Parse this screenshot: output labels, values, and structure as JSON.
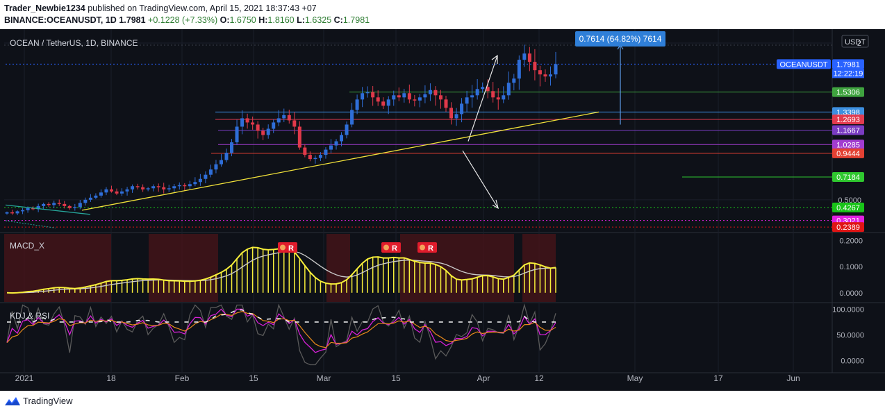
{
  "header": {
    "user": "Trader_Newbie1234",
    "published": " published on TradingView.com, April 15, 2021 18:37:43 +07",
    "symbol": "BINANCE:OCEANUSDT, 1D",
    "last": "1.7981",
    "change": "+0.1228 (+7.33%)",
    "o_label": "O:",
    "o_val": "1.6750",
    "h_label": "H:",
    "h_val": "1.8160",
    "l_label": "L:",
    "l_val": "1.6325",
    "c_label": "C:",
    "c_val": "1.7981"
  },
  "footer": {
    "brand": "TradingView"
  },
  "colors": {
    "bg": "#0e1118",
    "up": "#2f6ed8",
    "down": "#e0394a",
    "trend": "#f2e23a",
    "macd": "#f7ef3a",
    "grid": "#1b1f2a"
  },
  "chart_data": [
    {
      "type": "candlestick",
      "title": "OCEAN / TetherUS, 1D, BINANCE",
      "currency": "USDT",
      "y_ticks": [
        {
          "v": 2.0,
          "label": "2"
        },
        {
          "v": 0.5,
          "label": "0.5000"
        }
      ],
      "ylim": [
        0.2,
        2.04
      ],
      "x_ticks": [
        "2021",
        "18",
        "Feb",
        "15",
        "Mar",
        "15",
        "Apr",
        "12",
        "May",
        "17",
        "Jun"
      ],
      "ohlc_close": [
        0.38,
        0.37,
        0.39,
        0.4,
        0.42,
        0.41,
        0.44,
        0.46,
        0.45,
        0.47,
        0.46,
        0.44,
        0.42,
        0.43,
        0.47,
        0.5,
        0.52,
        0.54,
        0.57,
        0.6,
        0.58,
        0.56,
        0.58,
        0.6,
        0.63,
        0.62,
        0.6,
        0.61,
        0.63,
        0.62,
        0.6,
        0.61,
        0.63,
        0.64,
        0.63,
        0.65,
        0.67,
        0.7,
        0.74,
        0.79,
        0.84,
        0.88,
        0.95,
        1.05,
        1.2,
        1.28,
        1.24,
        1.22,
        1.16,
        1.12,
        1.18,
        1.24,
        1.28,
        1.31,
        1.26,
        1.2,
        1.0,
        0.93,
        0.89,
        0.9,
        0.93,
        0.98,
        1.02,
        1.06,
        1.12,
        1.22,
        1.36,
        1.46,
        1.52,
        1.53,
        1.48,
        1.44,
        1.4,
        1.46,
        1.5,
        1.48,
        1.52,
        1.46,
        1.45,
        1.48,
        1.51,
        1.55,
        1.5,
        1.46,
        1.38,
        1.28,
        1.32,
        1.42,
        1.48,
        1.5,
        1.56,
        1.58,
        1.54,
        1.48,
        1.46,
        1.5,
        1.62,
        1.66,
        1.84,
        1.9,
        1.82,
        1.74,
        1.7,
        1.68,
        1.7,
        1.7981
      ],
      "price_levels": [
        {
          "value": "1.7981",
          "label": "OCEANUSDT",
          "countdown": "12:22:19",
          "color": "#2962ff"
        },
        {
          "value": "1.5306",
          "color": "#3fa33f"
        },
        {
          "value": "1.3398",
          "color": "#3d8fe0"
        },
        {
          "value": "1.2693",
          "color": "#e23b4f"
        },
        {
          "value": "1.1667",
          "color": "#7a3cc2"
        },
        {
          "value": "1.0285",
          "color": "#a23cd0"
        },
        {
          "value": "0.9444",
          "color": "#e34133"
        },
        {
          "value": "0.7184",
          "color": "#2fc82f"
        },
        {
          "value": "0.4267",
          "color": "#18c418"
        },
        {
          "value": "0.3021",
          "color": "#e020e0"
        },
        {
          "value": "0.2389",
          "color": "#e01515"
        }
      ],
      "measure_label": "0.7614 (64.82%) 7614"
    },
    {
      "type": "line",
      "title": "MACD_X",
      "y_ticks": [
        "0.2000",
        "0.1000",
        "0.0000"
      ],
      "ylim": [
        -0.035,
        0.225
      ],
      "signals": [
        "R",
        "R",
        "R"
      ]
    },
    {
      "type": "line",
      "title": "KDJ & RSI",
      "y_ticks": [
        "100.0000",
        "50.0000",
        "0.0000"
      ],
      "ylim": [
        -10,
        110
      ]
    }
  ]
}
